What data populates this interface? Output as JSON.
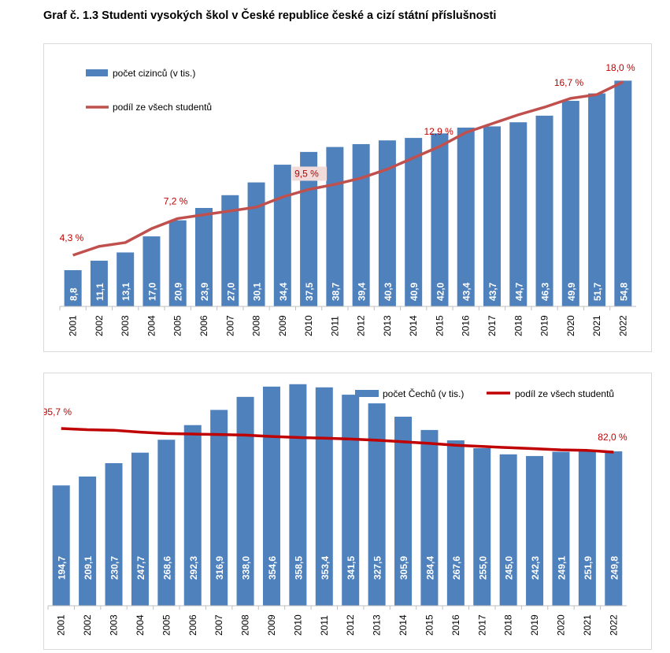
{
  "title": "Graf č. 1.3 Studenti vysokých škol v České republice české a cizí státní příslušnosti",
  "colors": {
    "bar": "#4f81bd",
    "line1": "#c0504d",
    "line2": "#c00000",
    "label": "#c00000",
    "bar_label": "#ffffff"
  },
  "chart_data": [
    {
      "type": "bar",
      "categories": [
        "2001",
        "2002",
        "2003",
        "2004",
        "2005",
        "2006",
        "2007",
        "2008",
        "2009",
        "2010",
        "2011",
        "2012",
        "2013",
        "2014",
        "2015",
        "2016",
        "2017",
        "2018",
        "2019",
        "2020",
        "2021",
        "2022"
      ],
      "series": [
        {
          "name": "počet cizinců (v tis.)",
          "type": "bar",
          "values": [
            8.8,
            11.1,
            13.1,
            17.0,
            20.9,
            23.9,
            27.0,
            30.1,
            34.4,
            37.5,
            38.7,
            39.4,
            40.3,
            40.9,
            42.0,
            43.4,
            43.7,
            44.7,
            46.3,
            49.9,
            51.7,
            54.8
          ],
          "labels": [
            "8,8",
            "11,1",
            "13,1",
            "17,0",
            "20,9",
            "23,9",
            "27,0",
            "30,1",
            "34,4",
            "37,5",
            "38,7",
            "39,4",
            "40,3",
            "40,9",
            "42,0",
            "43,4",
            "43,7",
            "44,7",
            "46,3",
            "49,9",
            "51,7",
            "54,8"
          ]
        },
        {
          "name": "podíl ze všech studentů",
          "type": "line",
          "values": [
            4.3,
            5.0,
            5.3,
            6.4,
            7.2,
            7.5,
            7.8,
            8.1,
            8.9,
            9.5,
            9.9,
            10.4,
            11.1,
            12.0,
            12.9,
            14.0,
            14.7,
            15.4,
            16.0,
            16.7,
            17.0,
            18.0
          ],
          "annotations": [
            {
              "index": 0,
              "text": "4,3 %"
            },
            {
              "index": 4,
              "text": "7,2 %"
            },
            {
              "index": 9,
              "text": "9,5 %"
            },
            {
              "index": 14,
              "text": "12,9 %"
            },
            {
              "index": 19,
              "text": "16,7 %"
            },
            {
              "index": 21,
              "text": "18,0 %"
            }
          ]
        }
      ],
      "legend_position": "top-left",
      "grid": false
    },
    {
      "type": "bar",
      "categories": [
        "2001",
        "2002",
        "2003",
        "2004",
        "2005",
        "2006",
        "2007",
        "2008",
        "2009",
        "2010",
        "2011",
        "2012",
        "2013",
        "2014",
        "2015",
        "2016",
        "2017",
        "2018",
        "2019",
        "2020",
        "2021",
        "2022"
      ],
      "series": [
        {
          "name": "počet Čechů (v tis.)",
          "type": "bar",
          "values": [
            194.7,
            209.1,
            230.7,
            247.7,
            268.6,
            292.3,
            316.9,
            338.0,
            354.6,
            358.5,
            353.4,
            341.5,
            327.5,
            305.9,
            284.4,
            267.6,
            255.0,
            245.0,
            242.3,
            249.1,
            251.9,
            249.8
          ],
          "labels": [
            "194,7",
            "209,1",
            "230,7",
            "247,7",
            "268,6",
            "292,3",
            "316,9",
            "338,0",
            "354,6",
            "358,5",
            "353,4",
            "341,5",
            "327,5",
            "305,9",
            "284,4",
            "267,6",
            "255,0",
            "245,0",
            "242,3",
            "249,1",
            "251,9",
            "249,8"
          ]
        },
        {
          "name": "podíl ze všech studentů",
          "type": "line",
          "values": [
            95.7,
            95.0,
            94.7,
            93.6,
            92.8,
            92.5,
            92.2,
            91.9,
            91.1,
            90.5,
            90.1,
            89.6,
            88.9,
            88.0,
            87.1,
            86.0,
            85.3,
            84.6,
            84.0,
            83.3,
            83.0,
            82.0
          ],
          "annotations": [
            {
              "index": 0,
              "text": "95,7 %"
            },
            {
              "index": 21,
              "text": "82,0 %"
            }
          ]
        }
      ],
      "legend_position": "top-right",
      "grid": false
    }
  ]
}
